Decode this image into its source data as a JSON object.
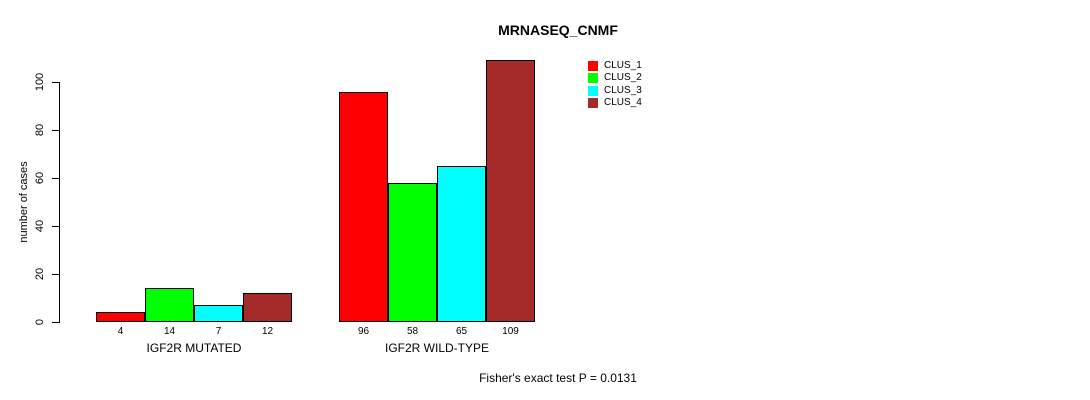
{
  "chart_data": {
    "type": "bar",
    "title": "MRNASEQ_CNMF",
    "ylabel": "number of cases",
    "xlabel": "",
    "ylim": [
      0,
      100
    ],
    "yticks": [
      0,
      20,
      40,
      60,
      80,
      100
    ],
    "grid": false,
    "legend_position": "inside-top-right",
    "categories": [
      "IGF2R MUTATED",
      "IGF2R WILD-TYPE"
    ],
    "series": [
      {
        "name": "CLUS_1",
        "color": "#FF0000",
        "values": [
          4,
          96
        ]
      },
      {
        "name": "CLUS_2",
        "color": "#00FF00",
        "values": [
          14,
          58
        ]
      },
      {
        "name": "CLUS_3",
        "color": "#00FFFF",
        "values": [
          7,
          65
        ]
      },
      {
        "name": "CLUS_4",
        "color": "#A52A2A",
        "values": [
          12,
          109
        ]
      }
    ],
    "bar_value_labels_shown": true,
    "annotation": "Fisher's exact test P = 0.0131"
  }
}
